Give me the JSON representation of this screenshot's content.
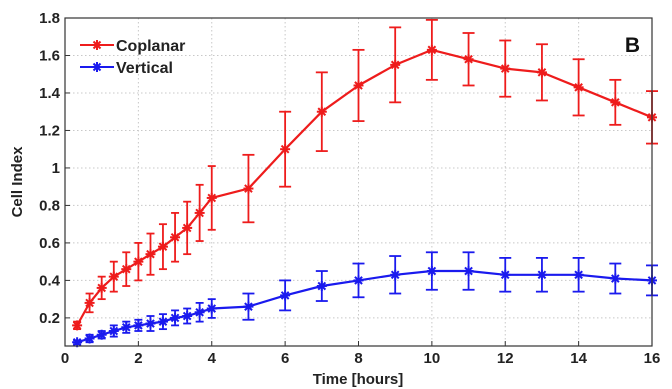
{
  "chart_data": {
    "type": "line",
    "title": "",
    "panel_label": "B",
    "xlabel": "Time [hours]",
    "ylabel": "Cell Index",
    "xlim": [
      0,
      16
    ],
    "ylim": [
      0.05,
      1.8
    ],
    "x_ticks": [
      0,
      2,
      4,
      6,
      8,
      10,
      12,
      14,
      16
    ],
    "x_tick_labels": [
      "0",
      "2",
      "4",
      "6",
      "8",
      "10",
      "12",
      "14",
      "16"
    ],
    "y_ticks": [
      0.2,
      0.4,
      0.6,
      0.8,
      1.0,
      1.2,
      1.4,
      1.6,
      1.8
    ],
    "y_tick_labels": [
      "0.2",
      "0.4",
      "0.6",
      "0.8",
      "1",
      "1.2",
      "1.4",
      "1.6",
      "1.8"
    ],
    "grid": true,
    "legend_position": "top-left",
    "series": [
      {
        "name": "Coplanar",
        "color": "#ee1c1c",
        "marker": "asterisk",
        "x": [
          0.33,
          0.67,
          1.0,
          1.33,
          1.67,
          2.0,
          2.33,
          2.67,
          3.0,
          3.33,
          3.67,
          4.0,
          5,
          6,
          7,
          8,
          9,
          10,
          11,
          12,
          13,
          14,
          15,
          16
        ],
        "y": [
          0.16,
          0.28,
          0.36,
          0.42,
          0.46,
          0.5,
          0.54,
          0.58,
          0.63,
          0.68,
          0.76,
          0.84,
          0.89,
          1.1,
          1.3,
          1.44,
          1.55,
          1.63,
          1.58,
          1.53,
          1.51,
          1.43,
          1.35,
          1.27
        ],
        "error": [
          0.02,
          0.05,
          0.06,
          0.08,
          0.09,
          0.1,
          0.11,
          0.12,
          0.13,
          0.14,
          0.15,
          0.17,
          0.18,
          0.2,
          0.21,
          0.19,
          0.2,
          0.16,
          0.14,
          0.15,
          0.15,
          0.15,
          0.12,
          0.14
        ]
      },
      {
        "name": "Vertical",
        "color": "#1a1aee",
        "marker": "asterisk",
        "x": [
          0.33,
          0.67,
          1.0,
          1.33,
          1.67,
          2.0,
          2.33,
          2.67,
          3.0,
          3.33,
          3.67,
          4.0,
          5,
          6,
          7,
          8,
          9,
          10,
          11,
          12,
          13,
          14,
          15,
          16
        ],
        "y": [
          0.07,
          0.09,
          0.11,
          0.13,
          0.15,
          0.16,
          0.17,
          0.18,
          0.2,
          0.21,
          0.23,
          0.25,
          0.26,
          0.32,
          0.37,
          0.4,
          0.43,
          0.45,
          0.45,
          0.43,
          0.43,
          0.43,
          0.41,
          0.4
        ],
        "error": [
          0.01,
          0.02,
          0.02,
          0.03,
          0.03,
          0.03,
          0.04,
          0.04,
          0.04,
          0.04,
          0.05,
          0.05,
          0.07,
          0.08,
          0.08,
          0.09,
          0.1,
          0.1,
          0.1,
          0.09,
          0.09,
          0.09,
          0.08,
          0.08
        ]
      }
    ]
  }
}
